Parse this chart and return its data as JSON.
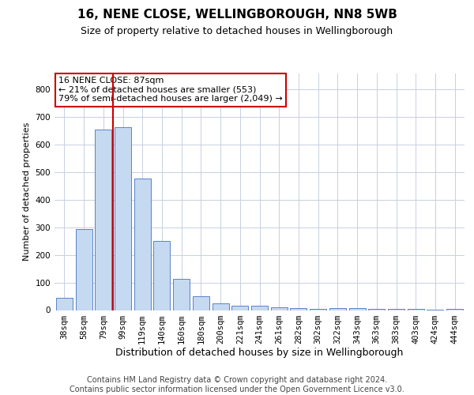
{
  "title": "16, NENE CLOSE, WELLINGBOROUGH, NN8 5WB",
  "subtitle": "Size of property relative to detached houses in Wellingborough",
  "xlabel": "Distribution of detached houses by size in Wellingborough",
  "ylabel": "Number of detached properties",
  "categories": [
    "38sqm",
    "58sqm",
    "79sqm",
    "99sqm",
    "119sqm",
    "140sqm",
    "160sqm",
    "180sqm",
    "200sqm",
    "221sqm",
    "241sqm",
    "261sqm",
    "282sqm",
    "302sqm",
    "322sqm",
    "343sqm",
    "363sqm",
    "383sqm",
    "403sqm",
    "424sqm",
    "444sqm"
  ],
  "values": [
    45,
    293,
    655,
    665,
    478,
    250,
    113,
    50,
    25,
    15,
    15,
    10,
    8,
    3,
    8,
    8,
    5,
    3,
    5,
    2,
    5
  ],
  "bar_color": "#c5d9f0",
  "bar_edge_color": "#4472c4",
  "grid_color": "#c8d0e0",
  "background_color": "#ffffff",
  "annotation_text": "16 NENE CLOSE: 87sqm\n← 21% of detached houses are smaller (553)\n79% of semi-detached houses are larger (2,049) →",
  "annotation_box_color": "#ffffff",
  "annotation_box_edge": "#cc0000",
  "vline_color": "#cc0000",
  "vline_x": 2.5,
  "ylim": [
    0,
    860
  ],
  "yticks": [
    0,
    100,
    200,
    300,
    400,
    500,
    600,
    700,
    800
  ],
  "footer_text": "Contains HM Land Registry data © Crown copyright and database right 2024.\nContains public sector information licensed under the Open Government Licence v3.0.",
  "title_fontsize": 11,
  "subtitle_fontsize": 9,
  "xlabel_fontsize": 9,
  "ylabel_fontsize": 8,
  "tick_fontsize": 7.5,
  "footer_fontsize": 7,
  "ann_fontsize": 8
}
